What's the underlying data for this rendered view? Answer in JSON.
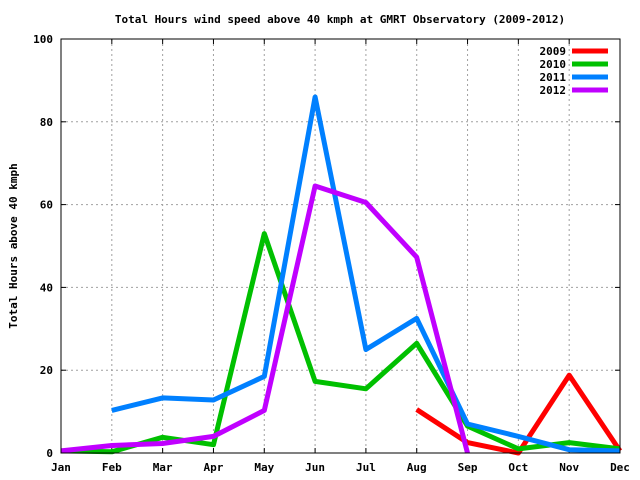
{
  "chart_data": {
    "type": "line",
    "title": "Total Hours wind speed above 40 kmph at GMRT Observatory (2009-2012)",
    "xlabel": "",
    "ylabel": "Total Hours above 40 kmph",
    "categories": [
      "Jan",
      "Feb",
      "Mar",
      "Apr",
      "May",
      "Jun",
      "Jul",
      "Aug",
      "Sep",
      "Oct",
      "Nov",
      "Dec"
    ],
    "ylim": [
      0,
      100
    ],
    "yticks": [
      0,
      20,
      40,
      60,
      80,
      100
    ],
    "grid": true,
    "legend_position": "top-right",
    "series": [
      {
        "name": "2009",
        "color": "#ff0000",
        "values": [
          null,
          null,
          null,
          null,
          null,
          null,
          null,
          10.5,
          2.5,
          0,
          18.8,
          0.5
        ]
      },
      {
        "name": "2010",
        "color": "#00c000",
        "values": [
          0.5,
          0.3,
          3.8,
          2.0,
          53.0,
          17.3,
          15.5,
          26.5,
          6.5,
          1.0,
          2.5,
          1.0
        ]
      },
      {
        "name": "2011",
        "color": "#0080ff",
        "values": [
          null,
          10.3,
          13.3,
          12.8,
          18.5,
          86.0,
          25.0,
          32.5,
          7.0,
          4.0,
          0.8,
          0.5
        ]
      },
      {
        "name": "2012",
        "color": "#c000ff",
        "values": [
          0.5,
          1.8,
          2.3,
          4.0,
          10.3,
          64.5,
          60.5,
          47.3,
          0,
          null,
          null,
          null
        ]
      }
    ]
  }
}
